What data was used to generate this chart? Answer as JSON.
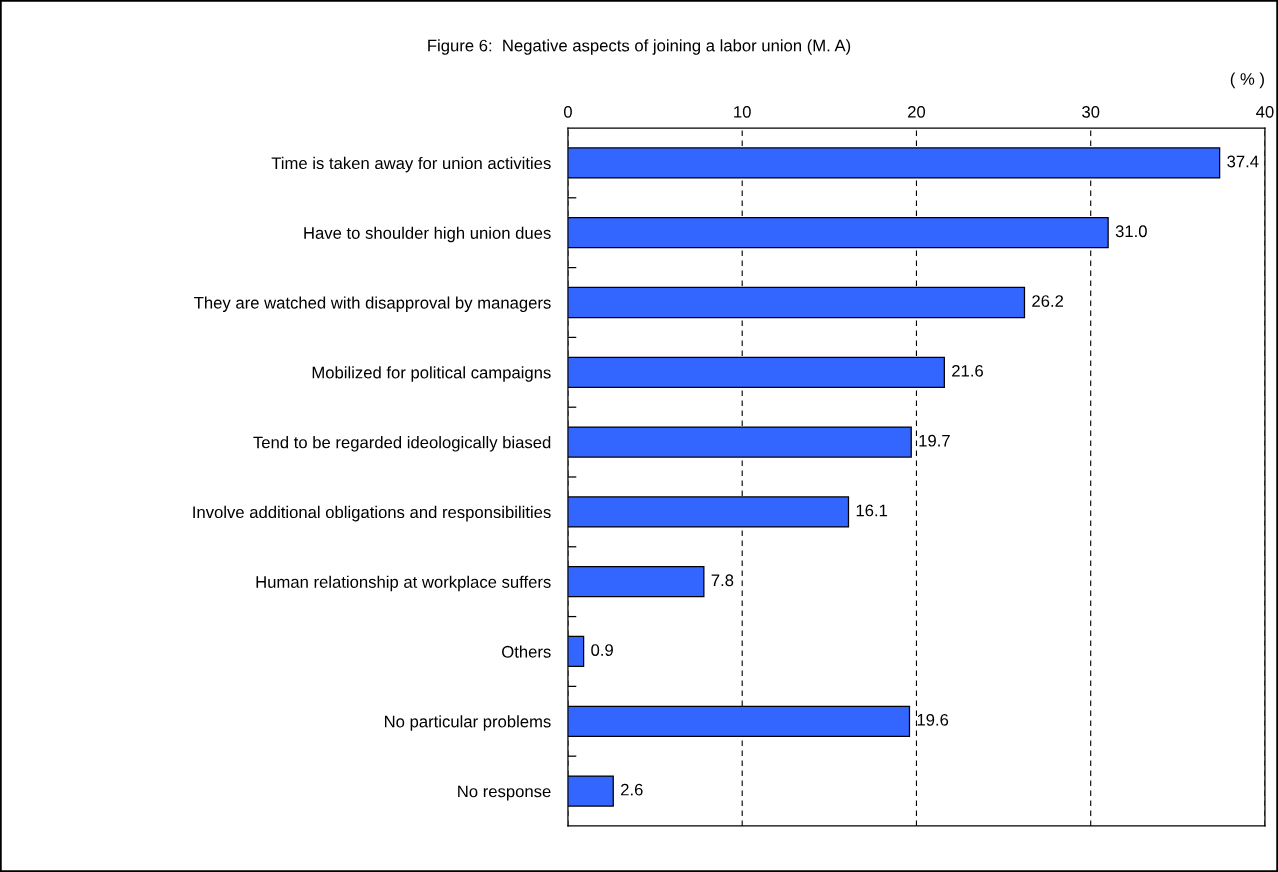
{
  "chart_data": {
    "type": "bar",
    "orientation": "horizontal",
    "title": "Figure 6:  Negative aspects of joining a labor union (M. A)",
    "xlabel": "( % )",
    "categories": [
      "Time is taken away for union activities",
      "Have to shoulder high union dues",
      "They are watched with disapproval by managers",
      "Mobilized for political campaigns",
      "Tend to be regarded ideologically biased",
      "Involve additional obligations and responsibilities",
      "Human relationship at workplace suffers",
      "Others",
      "No particular problems",
      "No response"
    ],
    "values": [
      37.4,
      31.0,
      26.2,
      21.6,
      19.7,
      16.1,
      7.8,
      0.9,
      19.6,
      2.6
    ],
    "value_labels": [
      "37.4",
      "31.0",
      "26.2",
      "21.6",
      "19.7",
      "16.1",
      "7.8",
      "0.9",
      "19.6",
      "2.6"
    ],
    "color": "#3366ff",
    "xlim": [
      0,
      40
    ],
    "xticks": [
      0,
      10,
      20,
      30,
      40
    ],
    "grid": "x"
  }
}
